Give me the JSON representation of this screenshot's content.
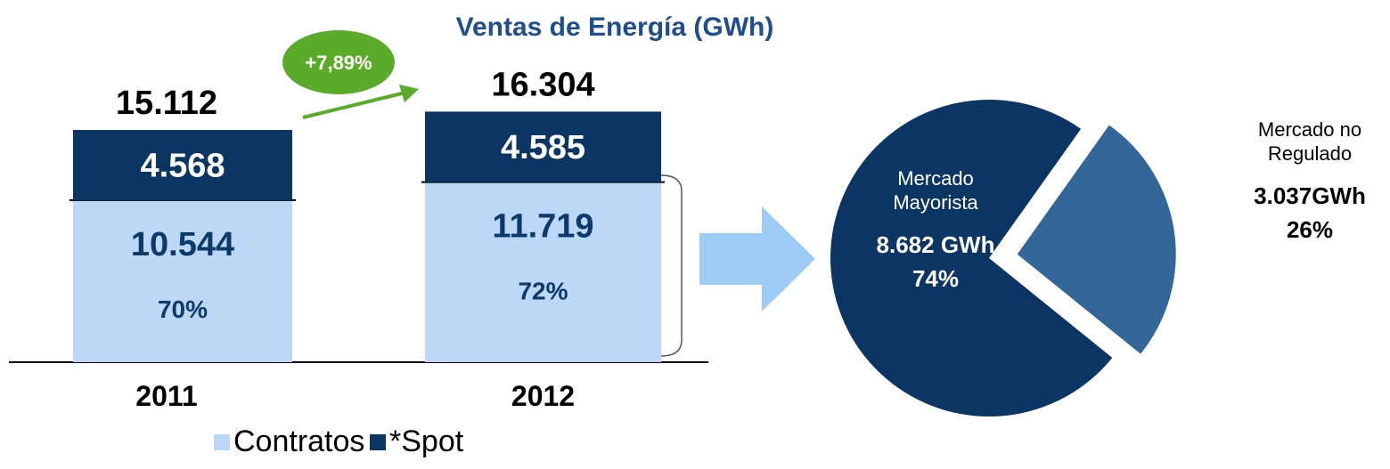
{
  "title": "Ventas de Energía (GWh)",
  "chart_data": [
    {
      "type": "bar",
      "categories": [
        "2011",
        "2012"
      ],
      "series": [
        {
          "name": "Contratos",
          "color": "#bdd7f7",
          "values": [
            10544,
            11719
          ],
          "value_labels": [
            "10.544",
            "11.719"
          ]
        },
        {
          "name": "*Spot",
          "color": "#0b3563",
          "values": [
            4568,
            4585
          ],
          "value_labels": [
            "4.568",
            "4.585"
          ]
        }
      ],
      "totals": [
        15112,
        16304
      ],
      "total_labels": [
        "15.112",
        "16.304"
      ],
      "shares": [
        70,
        72
      ],
      "share_labels": [
        "70%",
        "72%"
      ],
      "annotation": "+7,89%"
    },
    {
      "type": "pie",
      "categories": [
        "Mercado Mayorista",
        "Mercado no Regulado"
      ],
      "values": [
        74,
        26
      ],
      "value_labels": [
        "74%",
        "26%"
      ],
      "amounts": [
        8682,
        3037
      ],
      "amount_labels": [
        "8.682 GWh",
        "3.037GWh"
      ],
      "colors": [
        "#0b3563",
        "#336699"
      ]
    }
  ]
}
